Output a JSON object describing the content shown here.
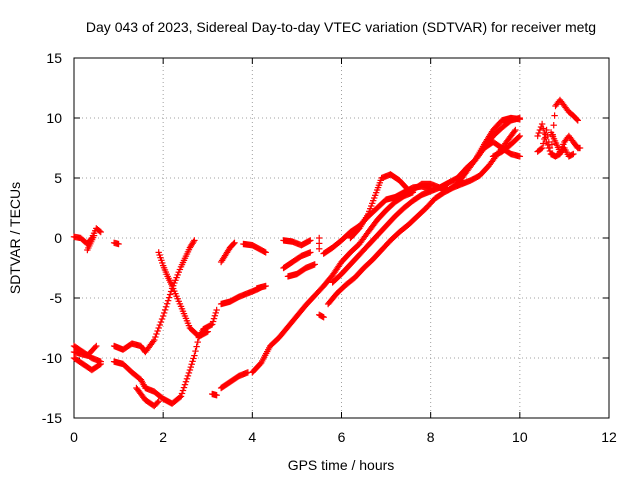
{
  "chart_data": {
    "type": "scatter",
    "title": "Day 043 of 2023, Sidereal Day-to-day VTEC variation (SDTVAR) for receiver metg",
    "xlabel": "GPS time / hours",
    "ylabel": "SDTVAR / TECUs",
    "xlim": [
      0,
      12
    ],
    "ylim": [
      -15,
      15
    ],
    "xticks": [
      0,
      2,
      4,
      6,
      8,
      10,
      12
    ],
    "yticks": [
      -15,
      -10,
      -5,
      0,
      5,
      10,
      15
    ],
    "xtick_labels": [
      "0",
      "2",
      "4",
      "6",
      "8",
      "10",
      "12"
    ],
    "ytick_labels": [
      "-15",
      "-10",
      "-5",
      "0",
      "5",
      "10",
      "15"
    ],
    "grid": true,
    "marker": "plus",
    "color": "#ff0000",
    "segments": [
      [
        [
          0.0,
          0.1
        ],
        [
          0.15,
          0.0
        ],
        [
          0.3,
          -0.5
        ],
        [
          0.4,
          0.0
        ],
        [
          0.5,
          0.8
        ],
        [
          0.6,
          0.5
        ]
      ],
      [
        [
          0.3,
          -1.0
        ],
        [
          0.45,
          0.2
        ]
      ],
      [
        [
          0.9,
          -0.4
        ],
        [
          1.0,
          -0.5
        ]
      ],
      [
        [
          0.0,
          -9.0
        ],
        [
          0.2,
          -9.5
        ],
        [
          0.4,
          -10.0
        ],
        [
          0.6,
          -10.3
        ]
      ],
      [
        [
          0.0,
          -10.0
        ],
        [
          0.2,
          -10.5
        ],
        [
          0.4,
          -11.0
        ],
        [
          0.6,
          -10.5
        ]
      ],
      [
        [
          0.0,
          -9.5
        ],
        [
          0.3,
          -9.8
        ],
        [
          0.5,
          -9.0
        ]
      ],
      [
        [
          0.9,
          -9.0
        ],
        [
          1.1,
          -9.3
        ],
        [
          1.3,
          -8.8
        ],
        [
          1.5,
          -9.0
        ],
        [
          1.6,
          -9.5
        ],
        [
          1.8,
          -8.5
        ],
        [
          2.0,
          -6.5
        ],
        [
          2.2,
          -4.2
        ],
        [
          2.4,
          -2.4
        ],
        [
          2.6,
          -0.8
        ],
        [
          2.7,
          -0.2
        ]
      ],
      [
        [
          0.9,
          -10.3
        ],
        [
          1.1,
          -10.5
        ],
        [
          1.3,
          -11.2
        ],
        [
          1.5,
          -11.8
        ],
        [
          1.6,
          -12.5
        ],
        [
          1.8,
          -12.8
        ],
        [
          2.0,
          -13.4
        ],
        [
          2.2,
          -13.8
        ],
        [
          2.4,
          -13.2
        ],
        [
          2.6,
          -11.0
        ],
        [
          2.7,
          -9.8
        ],
        [
          2.8,
          -8.3
        ],
        [
          2.9,
          -7.6
        ],
        [
          3.1,
          -7.2
        ],
        [
          3.2,
          -6.0
        ]
      ],
      [
        [
          1.4,
          -12.5
        ],
        [
          1.6,
          -13.5
        ],
        [
          1.8,
          -14.0
        ],
        [
          1.9,
          -13.6
        ]
      ],
      [
        [
          1.9,
          -1.2
        ],
        [
          2.0,
          -2.3
        ],
        [
          2.1,
          -3.2
        ],
        [
          2.2,
          -4.0
        ],
        [
          2.4,
          -5.7
        ],
        [
          2.6,
          -7.5
        ],
        [
          2.8,
          -8.2
        ],
        [
          3.0,
          -7.8
        ]
      ],
      [
        [
          3.1,
          -13.0
        ],
        [
          3.2,
          -13.1
        ]
      ],
      [
        [
          3.3,
          -5.5
        ],
        [
          3.5,
          -5.3
        ],
        [
          3.7,
          -4.9
        ],
        [
          3.9,
          -4.6
        ],
        [
          4.1,
          -4.3
        ],
        [
          4.2,
          -4.1
        ]
      ],
      [
        [
          3.3,
          -12.5
        ],
        [
          3.5,
          -12.0
        ],
        [
          3.7,
          -11.5
        ],
        [
          3.9,
          -11.2
        ]
      ],
      [
        [
          3.3,
          -2.0
        ],
        [
          3.5,
          -0.8
        ],
        [
          3.6,
          -0.4
        ]
      ],
      [
        [
          3.8,
          -0.5
        ],
        [
          4.0,
          -0.6
        ],
        [
          4.2,
          -1.0
        ],
        [
          4.3,
          -1.2
        ]
      ],
      [
        [
          4.0,
          -11.2
        ],
        [
          4.2,
          -10.4
        ],
        [
          4.4,
          -9.0
        ],
        [
          4.6,
          -8.3
        ],
        [
          4.8,
          -7.4
        ],
        [
          5.0,
          -6.5
        ],
        [
          5.2,
          -5.6
        ],
        [
          5.4,
          -4.8
        ],
        [
          5.6,
          -4.0
        ],
        [
          5.8,
          -3.1
        ],
        [
          6.0,
          -2.0
        ],
        [
          6.2,
          -1.2
        ],
        [
          6.4,
          -0.5
        ],
        [
          6.6,
          0.5
        ],
        [
          6.8,
          1.5
        ],
        [
          7.0,
          2.3
        ],
        [
          7.2,
          3.0
        ],
        [
          7.4,
          3.5
        ],
        [
          7.6,
          3.8
        ]
      ],
      [
        [
          4.1,
          -4.2
        ],
        [
          4.3,
          -4.0
        ]
      ],
      [
        [
          4.7,
          -0.2
        ],
        [
          4.9,
          -0.3
        ],
        [
          5.1,
          -0.6
        ],
        [
          5.3,
          -0.2
        ]
      ],
      [
        [
          4.8,
          -3.2
        ],
        [
          5.0,
          -3.0
        ],
        [
          5.2,
          -2.5
        ],
        [
          5.4,
          -2.2
        ]
      ],
      [
        [
          4.7,
          -2.5
        ],
        [
          4.9,
          -2.0
        ],
        [
          5.1,
          -1.5
        ],
        [
          5.3,
          -1.2
        ]
      ],
      [
        [
          5.5,
          -6.4
        ],
        [
          5.6,
          -6.6
        ]
      ],
      [
        [
          5.5,
          0.0
        ],
        [
          5.5,
          -0.9
        ]
      ],
      [
        [
          5.6,
          -1.3
        ],
        [
          5.8,
          -0.8
        ],
        [
          6.0,
          -0.2
        ],
        [
          6.2,
          0.5
        ],
        [
          6.4,
          1.0
        ],
        [
          6.6,
          1.8
        ],
        [
          6.8,
          2.5
        ],
        [
          7.0,
          3.2
        ],
        [
          7.2,
          3.4
        ],
        [
          7.4,
          3.8
        ],
        [
          7.6,
          4.2
        ],
        [
          7.8,
          4.3
        ],
        [
          8.0,
          4.1
        ]
      ],
      [
        [
          5.7,
          -5.5
        ],
        [
          5.9,
          -4.6
        ],
        [
          6.1,
          -3.9
        ],
        [
          6.3,
          -3.3
        ],
        [
          6.5,
          -2.5
        ],
        [
          6.7,
          -1.8
        ],
        [
          6.9,
          -1.0
        ],
        [
          7.1,
          -0.2
        ],
        [
          7.3,
          0.5
        ],
        [
          7.5,
          1.1
        ],
        [
          7.7,
          1.8
        ],
        [
          7.9,
          2.5
        ],
        [
          8.1,
          3.3
        ],
        [
          8.3,
          3.8
        ],
        [
          8.5,
          4.2
        ],
        [
          8.7,
          4.5
        ],
        [
          8.9,
          4.8
        ],
        [
          9.1,
          5.2
        ],
        [
          9.3,
          6.0
        ],
        [
          9.5,
          7.0
        ],
        [
          9.7,
          8.0
        ],
        [
          9.9,
          9.0
        ]
      ],
      [
        [
          5.8,
          -3.7
        ],
        [
          6.0,
          -3.0
        ],
        [
          6.2,
          -2.2
        ],
        [
          6.4,
          -1.4
        ],
        [
          6.6,
          -0.6
        ],
        [
          6.8,
          0.2
        ],
        [
          7.0,
          1.0
        ],
        [
          7.2,
          1.8
        ],
        [
          7.4,
          2.5
        ],
        [
          7.6,
          3.1
        ],
        [
          7.8,
          3.6
        ],
        [
          8.0,
          3.9
        ],
        [
          8.2,
          4.2
        ],
        [
          8.4,
          4.6
        ],
        [
          8.6,
          5.0
        ],
        [
          8.8,
          5.8
        ],
        [
          9.0,
          6.5
        ],
        [
          9.2,
          7.5
        ],
        [
          9.4,
          8.5
        ],
        [
          9.6,
          9.2
        ],
        [
          9.8,
          9.8
        ],
        [
          10.0,
          10.0
        ]
      ],
      [
        [
          6.2,
          0.0
        ],
        [
          6.4,
          0.8
        ],
        [
          6.6,
          2.0
        ],
        [
          6.8,
          4.0
        ],
        [
          6.9,
          5.0
        ],
        [
          7.1,
          5.3
        ],
        [
          7.3,
          4.8
        ],
        [
          7.5,
          4.0
        ],
        [
          7.6,
          4.0
        ],
        [
          7.8,
          4.5
        ],
        [
          8.0,
          4.5
        ],
        [
          8.2,
          4.2
        ],
        [
          8.4,
          4.0
        ],
        [
          8.6,
          4.5
        ],
        [
          8.8,
          5.5
        ],
        [
          9.0,
          6.5
        ],
        [
          9.2,
          7.8
        ],
        [
          9.4,
          9.0
        ],
        [
          9.6,
          9.8
        ],
        [
          9.8,
          10.0
        ],
        [
          10.0,
          9.9
        ]
      ],
      [
        [
          8.6,
          4.5
        ],
        [
          8.8,
          5.8
        ],
        [
          9.0,
          6.5
        ],
        [
          9.2,
          7.5
        ],
        [
          9.4,
          8.0
        ],
        [
          9.6,
          7.5
        ],
        [
          9.8,
          7.0
        ],
        [
          10.0,
          6.8
        ]
      ],
      [
        [
          9.4,
          6.8
        ],
        [
          9.6,
          7.2
        ],
        [
          9.8,
          7.8
        ],
        [
          10.0,
          8.5
        ]
      ],
      [
        [
          10.4,
          7.2
        ],
        [
          10.5,
          7.5
        ],
        [
          10.6,
          9.0
        ],
        [
          10.7,
          7.0
        ],
        [
          10.8,
          11.0
        ],
        [
          10.9,
          11.5
        ],
        [
          11.0,
          11.0
        ],
        [
          11.1,
          10.5
        ],
        [
          11.2,
          10.2
        ],
        [
          11.3,
          9.8
        ]
      ],
      [
        [
          10.4,
          8.5
        ],
        [
          10.5,
          9.5
        ],
        [
          10.6,
          8.0
        ],
        [
          10.7,
          7.0
        ],
        [
          10.8,
          6.8
        ],
        [
          10.9,
          7.0
        ],
        [
          11.0,
          7.5
        ],
        [
          11.1,
          6.8
        ],
        [
          11.2,
          7.0
        ]
      ],
      [
        [
          10.7,
          8.8
        ],
        [
          10.9,
          7.2
        ],
        [
          11.0,
          8.0
        ],
        [
          11.1,
          8.5
        ],
        [
          11.2,
          8.0
        ],
        [
          11.3,
          7.5
        ],
        [
          11.35,
          7.5
        ]
      ]
    ]
  }
}
